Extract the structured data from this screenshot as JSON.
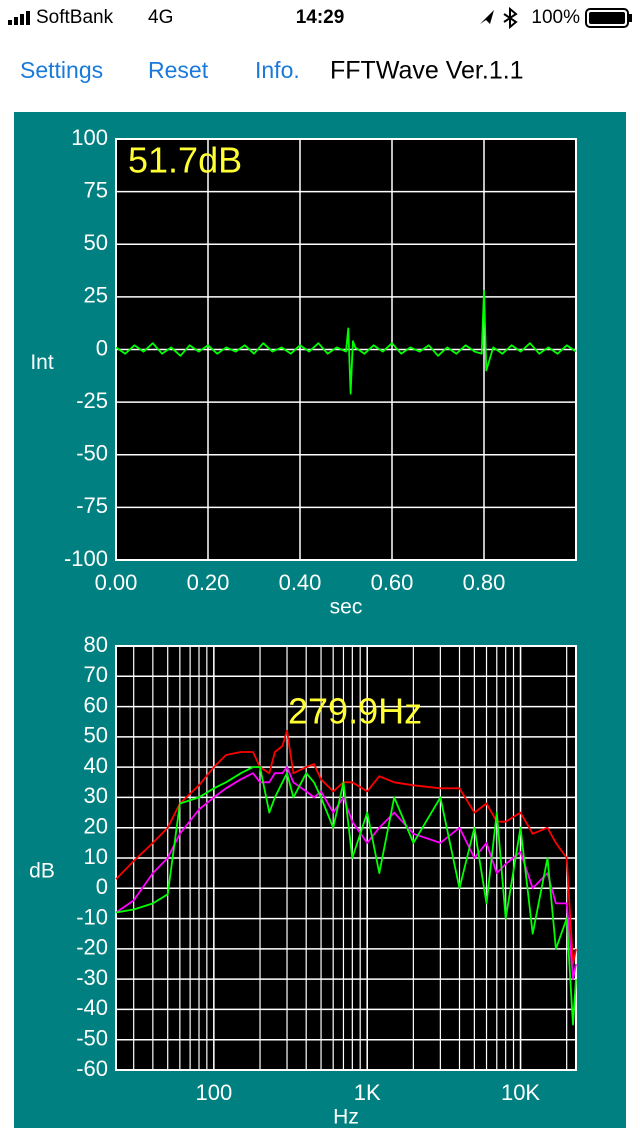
{
  "status_bar": {
    "carrier": "SoftBank",
    "network": "4G",
    "time": "14:29",
    "battery": "100%"
  },
  "nav": {
    "settings": "Settings",
    "reset": "Reset",
    "info": "Info.",
    "title": "FFTWave Ver.1.1"
  },
  "chart_data": [
    {
      "type": "line",
      "annotation": "51.7dB",
      "x_label": "sec",
      "y_label": "Int",
      "xlim": [
        0,
        1
      ],
      "ylim": [
        -100,
        100
      ],
      "grid": true,
      "xticks": [
        {
          "value": 0,
          "label": "0.00"
        },
        {
          "value": 0.2,
          "label": "0.20"
        },
        {
          "value": 0.4,
          "label": "0.40"
        },
        {
          "value": 0.6,
          "label": "0.60"
        },
        {
          "value": 0.8,
          "label": "0.80"
        }
      ],
      "yticks": [
        100,
        75,
        50,
        25,
        0,
        -25,
        -50,
        -75,
        -100
      ],
      "x": [
        0,
        0.02,
        0.04,
        0.06,
        0.08,
        0.1,
        0.12,
        0.14,
        0.16,
        0.18,
        0.2,
        0.22,
        0.24,
        0.26,
        0.28,
        0.3,
        0.32,
        0.34,
        0.36,
        0.38,
        0.4,
        0.42,
        0.44,
        0.46,
        0.48,
        0.5,
        0.505,
        0.51,
        0.515,
        0.52,
        0.54,
        0.56,
        0.58,
        0.6,
        0.62,
        0.64,
        0.66,
        0.68,
        0.7,
        0.72,
        0.74,
        0.76,
        0.78,
        0.795,
        0.8,
        0.805,
        0.82,
        0.84,
        0.86,
        0.88,
        0.9,
        0.92,
        0.94,
        0.96,
        0.98,
        1.0
      ],
      "series": [
        {
          "color": "#00ff00",
          "values": [
            1,
            -2,
            2,
            -1,
            3,
            -2,
            1,
            -3,
            2,
            -1,
            2,
            -2,
            1,
            -1,
            2,
            -2,
            3,
            -1,
            1,
            -2,
            2,
            -1,
            3,
            -2,
            1,
            -1,
            10,
            -21,
            4,
            1,
            -2,
            2,
            -1,
            3,
            -2,
            1,
            -1,
            2,
            -3,
            1,
            -2,
            2,
            -1,
            -2,
            28,
            -10,
            1,
            -2,
            2,
            -1,
            3,
            -2,
            1,
            -2,
            2,
            -1
          ]
        }
      ]
    },
    {
      "type": "line",
      "annotation": "279.9Hz",
      "x_label": "Hz",
      "y_label": "dB",
      "xscale": "log",
      "xlim": [
        23,
        23000
      ],
      "ylim": [
        -60,
        80
      ],
      "grid": true,
      "xticks": [
        100,
        {
          "value": 1000,
          "label": "1K"
        },
        {
          "value": 10000,
          "label": "10K"
        }
      ],
      "yticks": [
        80,
        70,
        60,
        50,
        40,
        30,
        20,
        10,
        0,
        -10,
        -20,
        -30,
        -40,
        -50,
        -60
      ],
      "x": [
        23,
        30,
        40,
        50,
        60,
        80,
        100,
        120,
        150,
        180,
        200,
        230,
        250,
        280,
        300,
        330,
        400,
        450,
        500,
        600,
        700,
        800,
        1000,
        1200,
        1500,
        2000,
        3000,
        4000,
        5000,
        6000,
        7000,
        8000,
        10000,
        12000,
        15000,
        17000,
        20000,
        22000,
        23000
      ],
      "series": [
        {
          "color": "#ff0000",
          "values": [
            3,
            9,
            15,
            20,
            28,
            34,
            40,
            44,
            45,
            45,
            40,
            38,
            45,
            47,
            52,
            38,
            40,
            41,
            36,
            32,
            35,
            35,
            32,
            37,
            35,
            34,
            33,
            33,
            25,
            28,
            22,
            22,
            25,
            18,
            20,
            15,
            10,
            -25,
            -20
          ]
        },
        {
          "color": "#ff00ff",
          "values": [
            -8,
            -4,
            5,
            10,
            18,
            26,
            30,
            33,
            36,
            38,
            35,
            35,
            38,
            38,
            40,
            35,
            32,
            30,
            32,
            25,
            30,
            22,
            15,
            20,
            25,
            18,
            15,
            20,
            10,
            15,
            5,
            8,
            12,
            0,
            5,
            -5,
            -5,
            -30,
            -25
          ]
        },
        {
          "color": "#00ff00",
          "values": [
            -8,
            -7,
            -5,
            -2,
            28,
            30,
            33,
            35,
            38,
            40,
            40,
            25,
            30,
            35,
            38,
            30,
            38,
            35,
            30,
            20,
            35,
            10,
            25,
            5,
            30,
            15,
            30,
            0,
            20,
            -5,
            25,
            -10,
            20,
            -15,
            10,
            -20,
            -10,
            -45,
            -30
          ]
        }
      ]
    }
  ]
}
